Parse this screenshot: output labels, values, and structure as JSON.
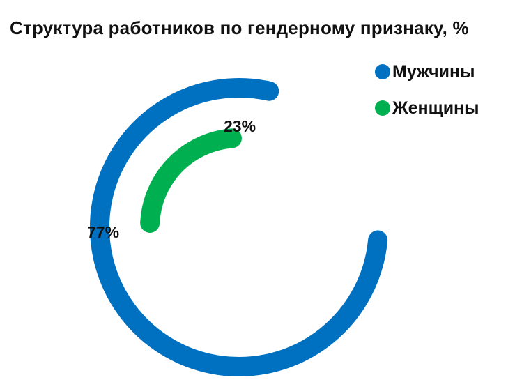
{
  "chart_data": {
    "type": "pie",
    "title": "Структура работников по гендерному признаку, %",
    "series": [
      {
        "name": "Мужчины",
        "value": 77,
        "label": "77%",
        "color": "#0070C0"
      },
      {
        "name": "Женщины",
        "value": 23,
        "label": "23%",
        "color": "#00B050"
      }
    ],
    "legend_position": "top-right"
  }
}
